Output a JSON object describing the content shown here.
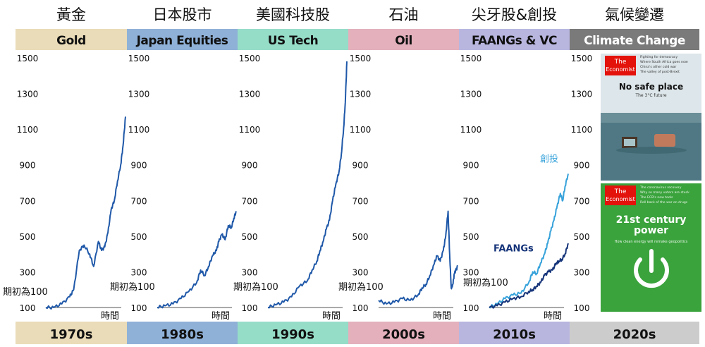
{
  "panels": [
    {
      "title_cn": "黃金",
      "label": "Gold",
      "decade": "1970s",
      "colors": {
        "label_bg": "#eadcb8",
        "decade_bg": "#eadcb8"
      }
    },
    {
      "title_cn": "日本股市",
      "label": "Japan Equities",
      "decade": "1980s",
      "colors": {
        "label_bg": "#8fb1d8",
        "decade_bg": "#8fb1d8"
      }
    },
    {
      "title_cn": "美國科技股",
      "label": "US Tech",
      "decade": "1990s",
      "colors": {
        "label_bg": "#96ddc8",
        "decade_bg": "#96ddc8"
      }
    },
    {
      "title_cn": "石油",
      "label": "Oil",
      "decade": "2000s",
      "colors": {
        "label_bg": "#e3b0bc",
        "decade_bg": "#e3b0bc"
      }
    },
    {
      "title_cn": "尖牙股&創投",
      "label": "FAANGs & VC",
      "decade": "2010s",
      "colors": {
        "label_bg": "#b8b6df",
        "decade_bg": "#b8b6df"
      }
    },
    {
      "title_cn": "氣候變遷",
      "label": "Climate Change",
      "decade": "2020s",
      "colors": {
        "label_bg": "#7a7a7a",
        "decade_bg": "#cccccc",
        "label_text": "#ffffff"
      }
    }
  ],
  "common": {
    "start_note": "期初為100",
    "x_axis_label": "時間"
  },
  "covers": [
    {
      "brand": "The Economist",
      "headline": "No safe place",
      "subhead": "The 3°C future",
      "teasers": [
        "Fighting for democracy",
        "Where South Africa goes now",
        "China's other cold war",
        "The valley of post-Brexit"
      ],
      "colors": {
        "brand_bg": "#e3120b",
        "sky": "#dde6ea",
        "sea": "#4f7884"
      }
    },
    {
      "brand": "The Economist",
      "headline": "21st century power",
      "subhead": "How clean energy will remake geopolitics",
      "teasers": [
        "The coronavirus recovery",
        "Why so many voters are stuck",
        "The ECB's new tools",
        "Roll back of the war on drugs"
      ],
      "colors": {
        "brand_bg": "#e3120b",
        "bg": "#3aa33c"
      }
    }
  ],
  "chart_data": [
    {
      "type": "line",
      "title": "Gold",
      "ylim": [
        100,
        1500
      ],
      "yticks": [
        100,
        300,
        500,
        700,
        900,
        1100,
        1300,
        1500
      ],
      "series": [
        {
          "color": "#1f58a8",
          "x": [
            0,
            0.1,
            0.2,
            0.3,
            0.35,
            0.42,
            0.48,
            0.55,
            0.6,
            0.66,
            0.7,
            0.74,
            0.78,
            0.82,
            0.86,
            0.9,
            0.94,
            0.97,
            1.0
          ],
          "y": [
            100,
            100,
            120,
            160,
            200,
            420,
            450,
            400,
            330,
            470,
            420,
            440,
            520,
            650,
            700,
            810,
            900,
            1010,
            1170
          ]
        }
      ]
    },
    {
      "type": "line",
      "title": "Japan Equities",
      "ylim": [
        100,
        1500
      ],
      "yticks": [
        100,
        300,
        500,
        700,
        900,
        1100,
        1300,
        1500
      ],
      "series": [
        {
          "color": "#1f58a8",
          "x": [
            0,
            0.1,
            0.2,
            0.3,
            0.4,
            0.5,
            0.55,
            0.6,
            0.65,
            0.7,
            0.75,
            0.78,
            0.82,
            0.86,
            0.9,
            0.94,
            0.97,
            1.0
          ],
          "y": [
            100,
            110,
            120,
            150,
            190,
            240,
            310,
            280,
            330,
            390,
            420,
            470,
            510,
            480,
            560,
            550,
            600,
            640
          ]
        }
      ]
    },
    {
      "type": "line",
      "title": "US Tech",
      "ylim": [
        100,
        1500
      ],
      "yticks": [
        100,
        300,
        500,
        700,
        900,
        1100,
        1300,
        1500
      ],
      "series": [
        {
          "color": "#1f58a8",
          "x": [
            0,
            0.1,
            0.2,
            0.3,
            0.4,
            0.5,
            0.56,
            0.62,
            0.66,
            0.7,
            0.74,
            0.78,
            0.82,
            0.86,
            0.9,
            0.93,
            0.96,
            0.98,
            1.0
          ],
          "y": [
            100,
            115,
            130,
            160,
            220,
            250,
            310,
            360,
            420,
            470,
            540,
            590,
            700,
            790,
            860,
            960,
            1110,
            1250,
            1480
          ]
        }
      ]
    },
    {
      "type": "line",
      "title": "Oil",
      "ylim": [
        100,
        1500
      ],
      "yticks": [
        100,
        300,
        500,
        700,
        900,
        1100,
        1300,
        1500
      ],
      "series": [
        {
          "color": "#1f58a8",
          "x": [
            0,
            0.1,
            0.2,
            0.3,
            0.4,
            0.5,
            0.55,
            0.6,
            0.65,
            0.7,
            0.74,
            0.78,
            0.82,
            0.85,
            0.88,
            0.9,
            0.92,
            0.94,
            0.96,
            0.98,
            1.0
          ],
          "y": [
            140,
            120,
            130,
            150,
            140,
            170,
            210,
            230,
            280,
            340,
            390,
            360,
            420,
            500,
            640,
            400,
            210,
            230,
            290,
            310,
            330
          ]
        }
      ]
    },
    {
      "type": "line",
      "title": "FAANGs & VC",
      "ylim": [
        100,
        1500
      ],
      "yticks": [
        100,
        300,
        500,
        700,
        900,
        1100,
        1300,
        1500
      ],
      "series": [
        {
          "name": "創投",
          "color": "#36a2da",
          "x": [
            0,
            0.1,
            0.2,
            0.3,
            0.4,
            0.5,
            0.55,
            0.6,
            0.65,
            0.7,
            0.74,
            0.78,
            0.82,
            0.86,
            0.9,
            0.93,
            0.96,
            1.0
          ],
          "y": [
            100,
            120,
            150,
            170,
            180,
            240,
            300,
            290,
            350,
            400,
            460,
            530,
            590,
            670,
            740,
            700,
            780,
            850
          ]
        },
        {
          "name": "FAANGs",
          "color": "#17357a",
          "x": [
            0,
            0.1,
            0.2,
            0.3,
            0.4,
            0.5,
            0.55,
            0.6,
            0.65,
            0.7,
            0.75,
            0.8,
            0.85,
            0.88,
            0.92,
            0.96,
            1.0
          ],
          "y": [
            100,
            110,
            130,
            150,
            160,
            190,
            200,
            220,
            240,
            280,
            300,
            310,
            350,
            360,
            370,
            400,
            460
          ]
        }
      ]
    },
    {
      "type": "line",
      "title": "Climate Change",
      "ylim": [
        100,
        1500
      ],
      "yticks": [
        100,
        300,
        500,
        700,
        900,
        1100,
        1300,
        1500
      ],
      "series": []
    }
  ]
}
